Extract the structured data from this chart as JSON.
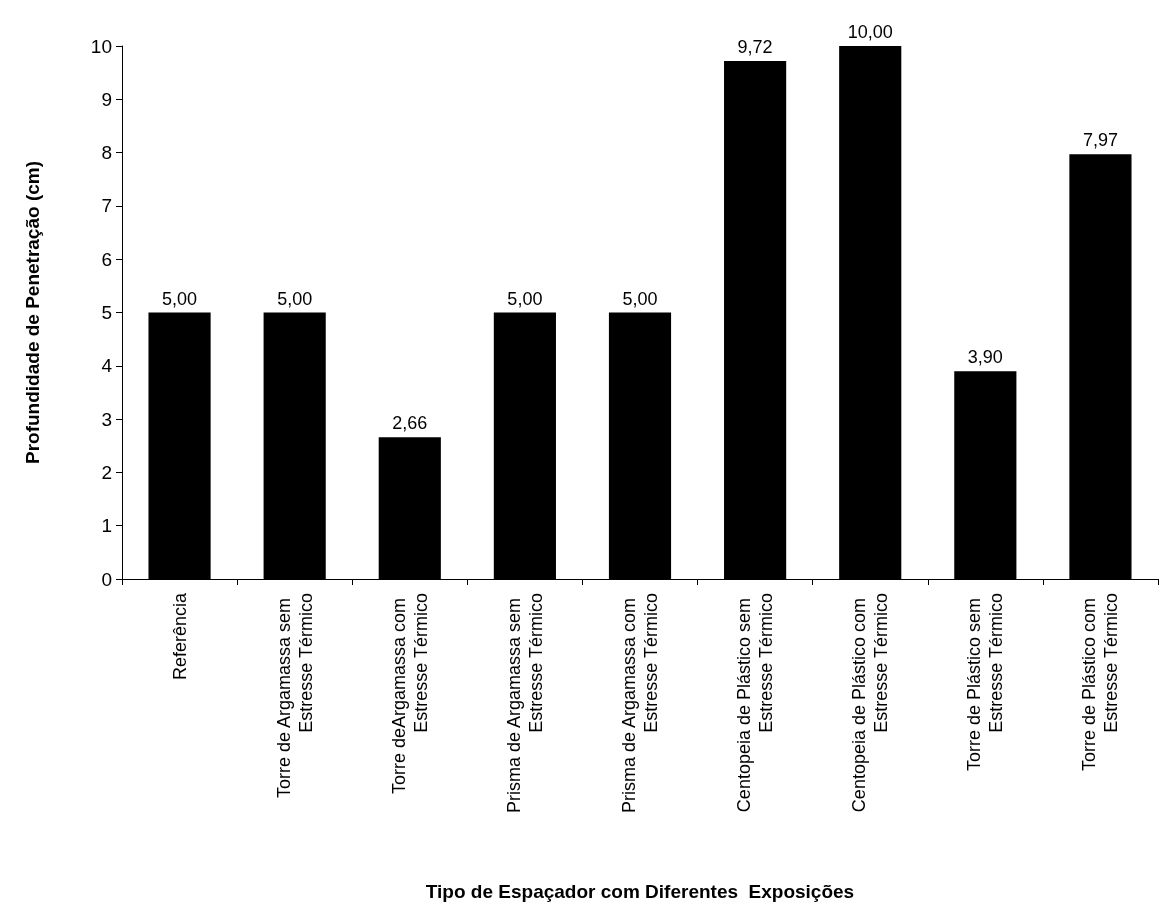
{
  "chart_data": {
    "type": "bar",
    "xlabel": "Tipo de Espaçador com Diferentes  Exposições",
    "ylabel": "Profundidade de Penetração (cm)",
    "categories": [
      "Referência",
      "Torre de Argamassa sem Estresse Térmico",
      "Torre deArgamassa com Estresse Térmico",
      "Prisma de Argamassa sem Estresse Térmico",
      "Prisma de Argamassa com Estresse Térmico",
      "Centopeia de Plástico sem Estresse Térmico",
      "Centopeia de Plástico com Estresse Térmico",
      "Torre de Plástico sem Estresse Térmico",
      "Torre de Plástico com Estresse Térmico"
    ],
    "values": [
      5,
      5,
      2.66,
      5,
      5,
      9.72,
      10,
      3.9,
      7.97
    ],
    "color": "#000000",
    "value_labels": [
      "5,00",
      "5,00",
      "2,66",
      "5,00",
      "5,00",
      "9,72",
      "10,00",
      "3,90",
      "7,97"
    ],
    "ylim": [
      0,
      10
    ],
    "yticks": [
      0,
      1,
      2,
      3,
      4,
      5,
      6,
      7,
      8,
      9,
      10
    ],
    "grid": false
  }
}
